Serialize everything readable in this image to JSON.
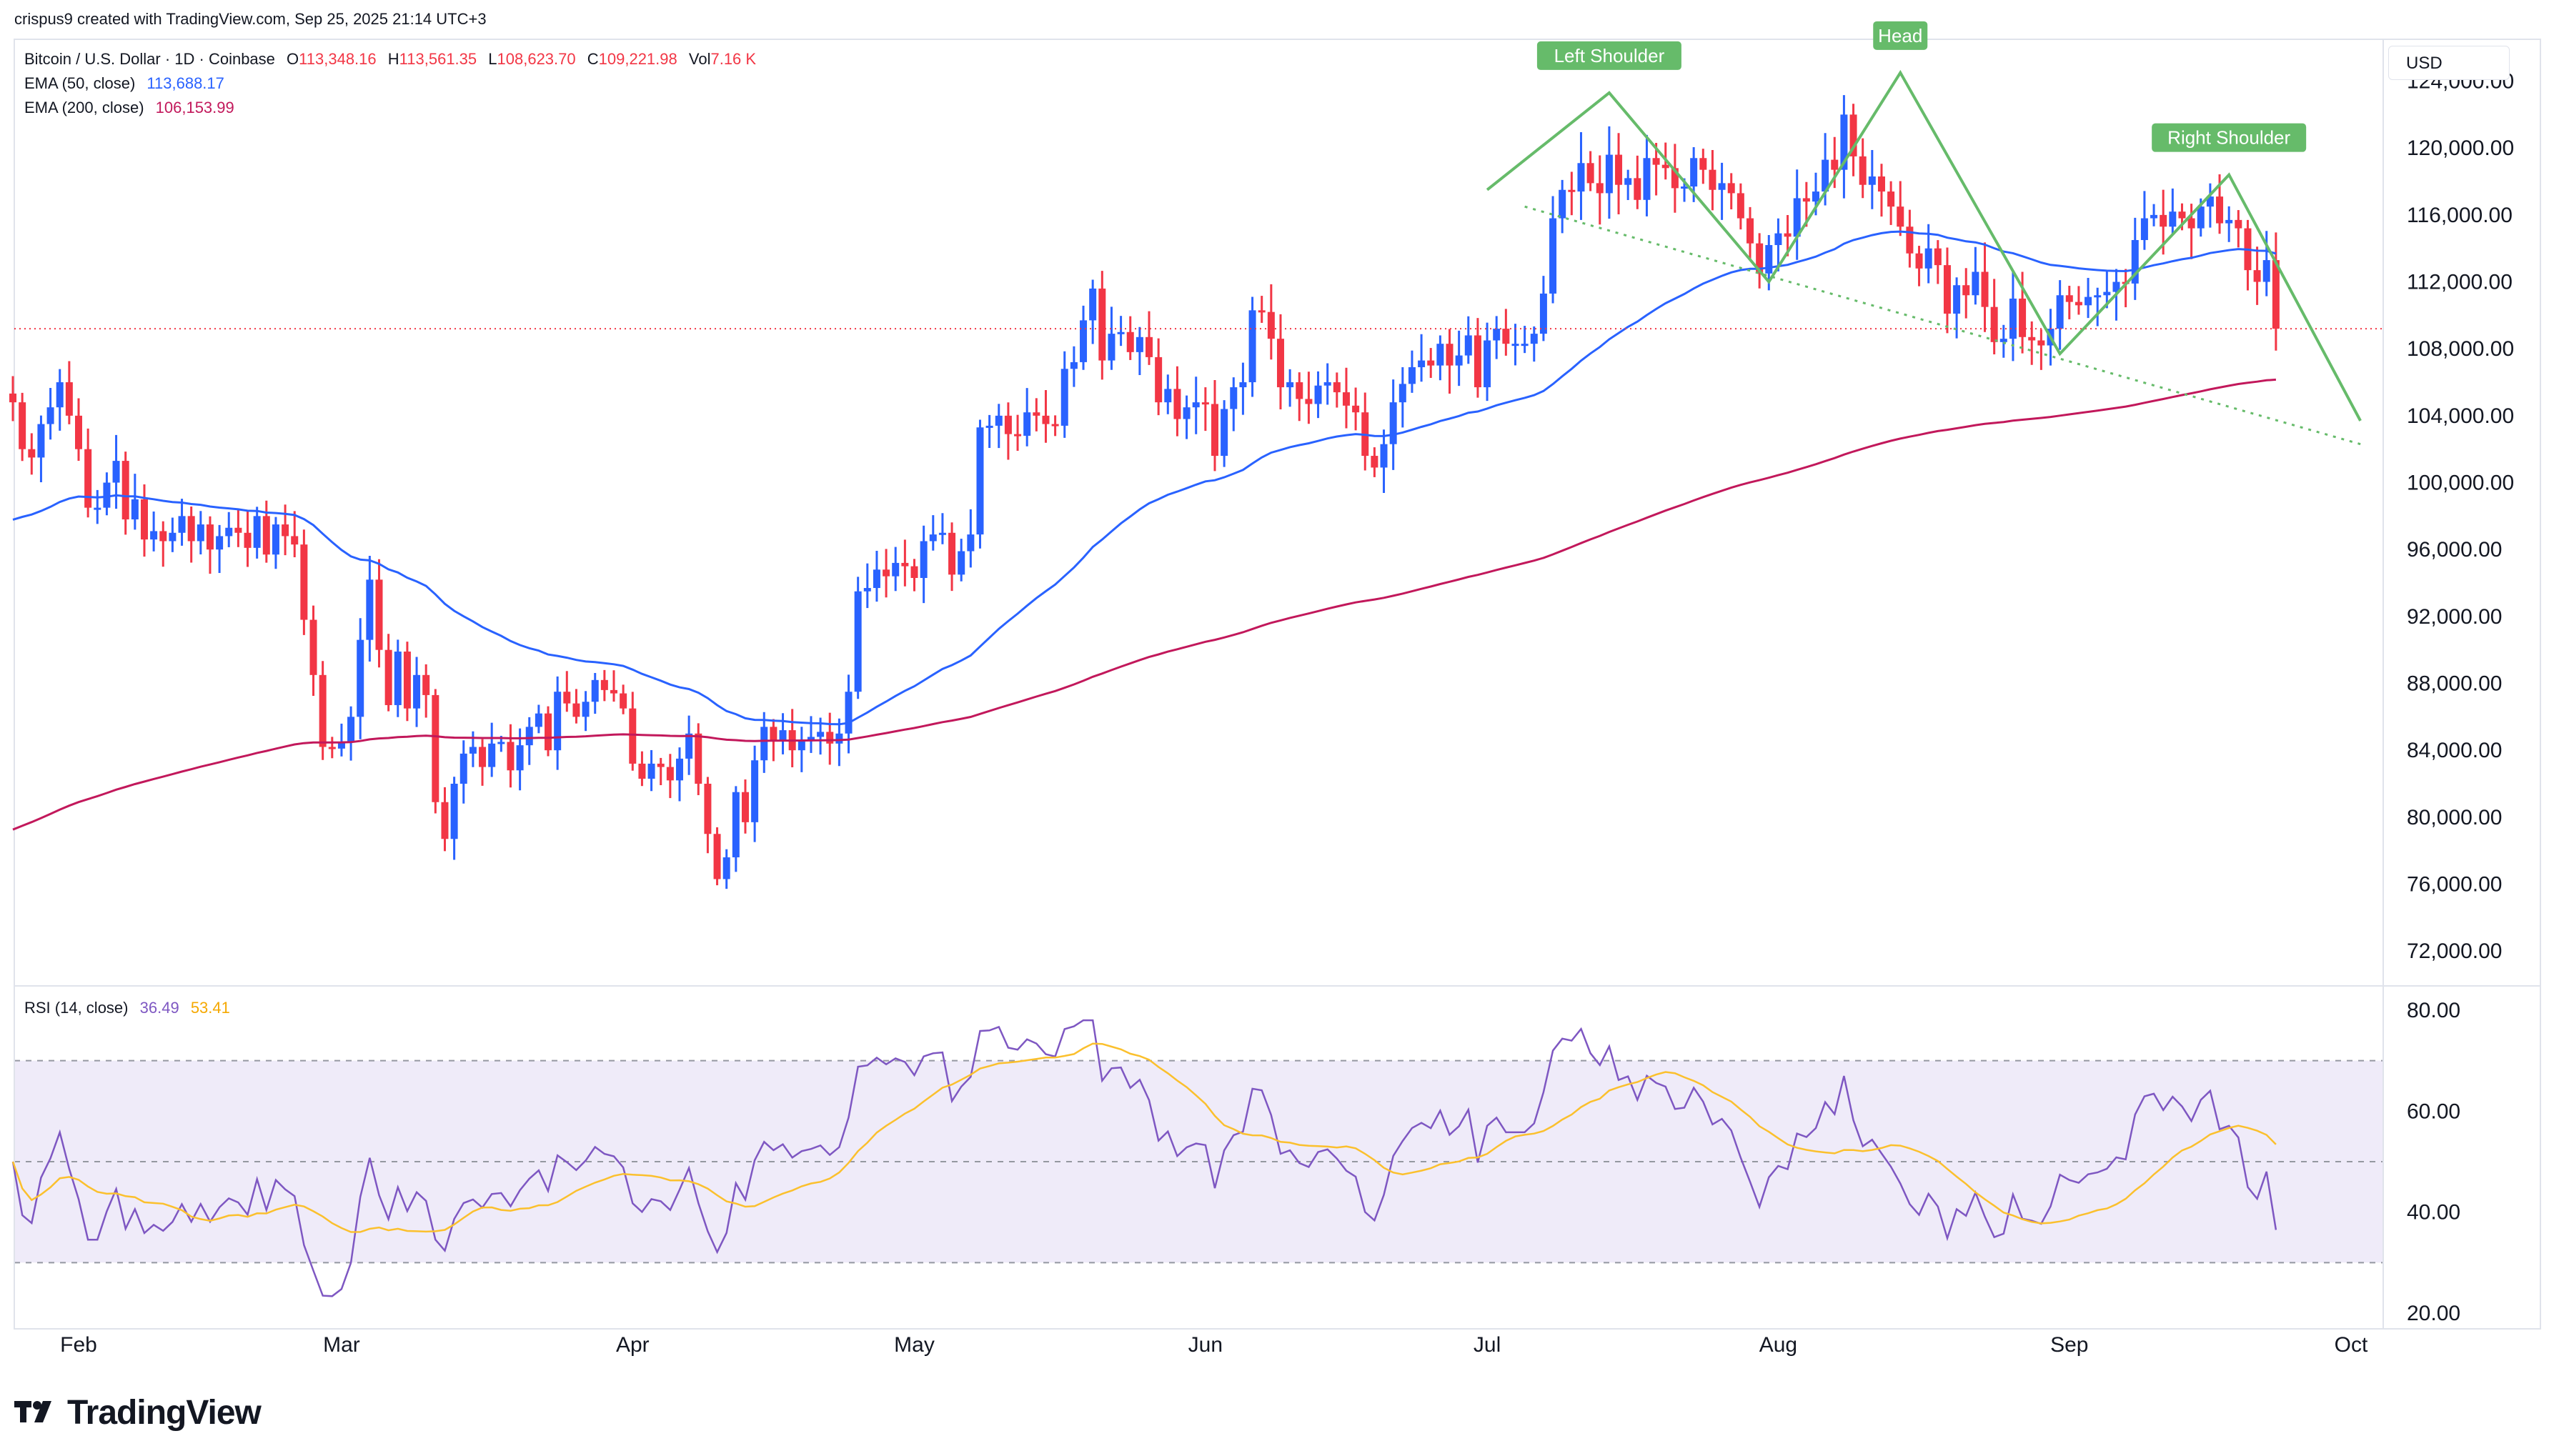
{
  "header": {
    "credit": "crispus9 created with TradingView.com, Sep 25, 2025 21:14 UTC+3"
  },
  "legend": {
    "symbol": "Bitcoin / U.S. Dollar · 1D · Coinbase",
    "o_label": "O",
    "o_value": "113,348.16",
    "h_label": "H",
    "h_value": "113,561.35",
    "l_label": "L",
    "l_value": "108,623.70",
    "c_label": "C",
    "c_value": "109,221.98",
    "vol_label": "Vol",
    "vol_value": "7.16 K",
    "ema50_label": "EMA (50, close)",
    "ema50_value": "113,688.17",
    "ema200_label": "EMA (200, close)",
    "ema200_value": "106,153.99",
    "rsi_label": "RSI (14, close)",
    "rsi_value": "36.49",
    "rsi_ma_value": "53.41"
  },
  "currency": "USD",
  "brand": {
    "name": "TradingView",
    "logo_icon": "tradingview-logo-icon"
  },
  "colors": {
    "up": "#2962ff",
    "down": "#f23645",
    "ema50": "#2962ff",
    "ema200": "#c2185b",
    "rsi": "#7e57c2",
    "rsi_ma": "#fbc02d",
    "pattern": "#66bb6a",
    "rsi_band": "#efebf9"
  },
  "chart_data": [
    {
      "type": "candlestick",
      "title": "Bitcoin / U.S. Dollar · 1D · Coinbase",
      "currency": "USD",
      "x_ticks": [
        "Feb",
        "Mar",
        "Apr",
        "May",
        "Jun",
        "Jul",
        "Aug",
        "Sep",
        "Oct"
      ],
      "y_ticks": [
        124000,
        120000,
        116000,
        112000,
        108000,
        104000,
        100000,
        96000,
        92000,
        88000,
        84000,
        80000,
        76000,
        72000
      ],
      "y_tick_labels": [
        "124,000.00",
        "120,000.00",
        "116,000.00",
        "112,000.00",
        "108,000.00",
        "104,000.00",
        "100,000.00",
        "96,000.00",
        "92,000.00",
        "88,000.00",
        "84,000.00",
        "80,000.00",
        "76,000.00",
        "72,000.00"
      ],
      "ylim": [
        70000,
        126500
      ],
      "grid": false,
      "first_date": "2025-01-25",
      "closes": [
        104800,
        102000,
        101500,
        103500,
        104500,
        106000,
        104000,
        102000,
        98500,
        98500,
        100000,
        101300,
        97800,
        99000,
        96600,
        97100,
        96500,
        97000,
        98000,
        96500,
        97500,
        96000,
        96800,
        97300,
        97000,
        96100,
        98000,
        95700,
        97500,
        96800,
        96300,
        91800,
        88500,
        84200,
        84100,
        84500,
        86000,
        90600,
        94200,
        90000,
        86700,
        89900,
        86500,
        88500,
        87300,
        80900,
        78700,
        82000,
        83800,
        84200,
        83000,
        84400,
        84500,
        82800,
        84300,
        85400,
        86200,
        84000,
        87500,
        86800,
        86000,
        86900,
        88200,
        87600,
        87400,
        86500,
        83200,
        82300,
        83200,
        83000,
        82200,
        83500,
        85000,
        82000,
        79000,
        76300,
        77600,
        81500,
        79700,
        83400,
        85400,
        84600,
        85200,
        84000,
        84600,
        84800,
        85100,
        84400,
        85000,
        87500,
        93500,
        93700,
        94800,
        94400,
        95200,
        95000,
        94300,
        96500,
        96900,
        97000,
        94500,
        95900,
        96900,
        103300,
        103400,
        104000,
        102900,
        102800,
        104200,
        104000,
        103500,
        103400,
        106800,
        107200,
        109700,
        111600,
        107300,
        108900,
        109000,
        107800,
        108700,
        107500,
        104800,
        105600,
        103800,
        104500,
        104800,
        104700,
        101600,
        104400,
        105700,
        106000,
        110300,
        110200,
        108600,
        105700,
        106000,
        105000,
        104700,
        105800,
        106000,
        105400,
        104600,
        104200,
        101600,
        100900,
        102300,
        104800,
        105900,
        106900,
        107300,
        107000,
        108300,
        107000,
        107600,
        108800,
        105700,
        108500,
        109200,
        108300,
        108300,
        108300,
        108900,
        111300,
        115800,
        117500,
        117400,
        119100,
        117900,
        117300,
        119600,
        117800,
        118200,
        116900,
        119400,
        119000,
        118800,
        117600,
        117700,
        119400,
        118700,
        117500,
        117900,
        117300,
        115800,
        114300,
        112500,
        114200,
        114900,
        114700,
        117000,
        116800,
        117400,
        119300,
        118700,
        122000,
        119500,
        117800,
        118300,
        117400,
        116500,
        115300,
        113700,
        112800,
        114000,
        113000,
        110100,
        111800,
        111200,
        112600,
        110500,
        108400,
        108600,
        111000,
        108700,
        108500,
        108200,
        109200,
        111200,
        110800,
        110600,
        111100,
        111200,
        111400,
        112000,
        111900,
        114500,
        115800,
        116000,
        115300,
        116200,
        115800,
        115200,
        116500,
        117100,
        115500,
        115700,
        115200,
        112700,
        112000,
        113300,
        109200
      ],
      "ema50_last": 113688.17,
      "ema200_last": 106153.99,
      "annotations": [
        "Left Shoulder",
        "Head",
        "Right Shoulder"
      ]
    },
    {
      "type": "line",
      "title": "RSI (14, close)",
      "series": [
        {
          "name": "RSI (14, close)"
        }
      ],
      "y_ticks": [
        80,
        60,
        40,
        20
      ],
      "y_tick_labels": [
        "80.00",
        "60.00",
        "40.00",
        "20.00"
      ],
      "ylim": [
        20,
        80
      ],
      "bands": [
        70,
        50,
        30
      ],
      "last_rsi": 36.49,
      "last_rsi_ma": 53.41
    }
  ]
}
